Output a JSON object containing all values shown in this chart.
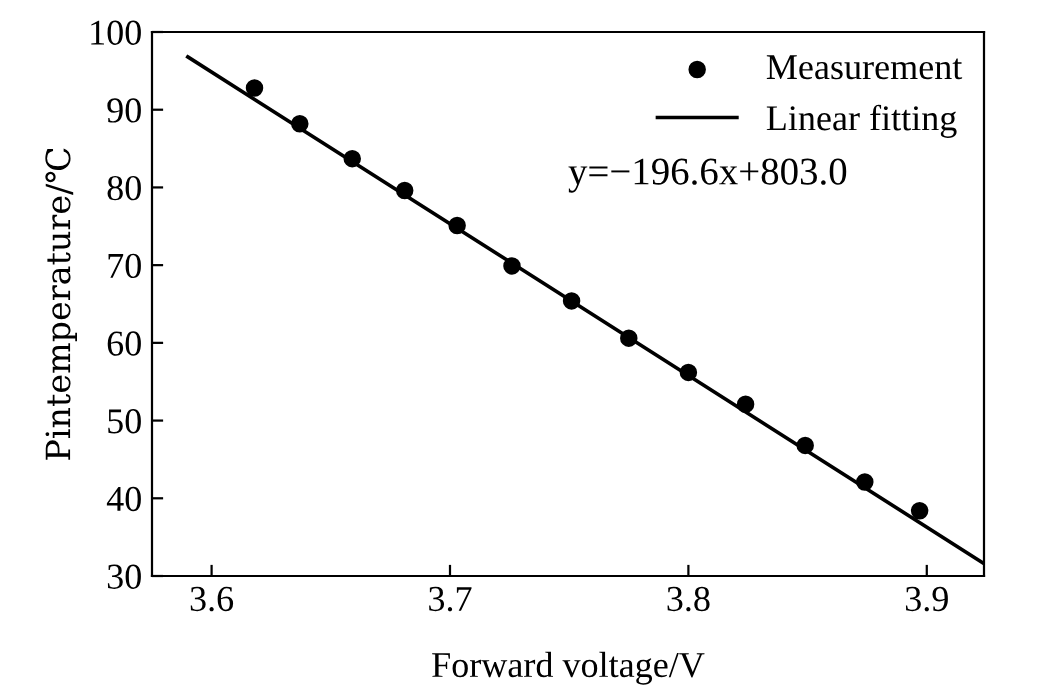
{
  "chart_data": {
    "type": "scatter",
    "xlabel": "Forward voltage/V",
    "ylabel": "Pintemperature/℃",
    "series": [
      {
        "name": "Measurement",
        "color": "#000000",
        "marker": "circle",
        "x": [
          3.618,
          3.637,
          3.659,
          3.681,
          3.703,
          3.726,
          3.751,
          3.775,
          3.8,
          3.824,
          3.849,
          3.874,
          3.897
        ],
        "values": [
          92.8,
          88.2,
          83.7,
          79.6,
          75.1,
          69.9,
          65.4,
          60.6,
          56.2,
          52.1,
          46.8,
          42.1,
          38.4
        ]
      },
      {
        "name": "Linear fitting",
        "type": "line",
        "color": "#000000",
        "line_style": "solid",
        "x": [
          3.59,
          3.924
        ],
        "values": [
          96.8,
          31.6
        ]
      }
    ],
    "annotations": [
      "y=−196.6x+803.0"
    ],
    "xlim": [
      3.575,
      3.924
    ],
    "ylim": [
      30,
      100
    ],
    "xticks": [
      3.6,
      3.7,
      3.8,
      3.9
    ],
    "yticks": [
      30,
      40,
      50,
      60,
      70,
      80,
      90,
      100
    ],
    "grid": false,
    "legend": "top right"
  }
}
